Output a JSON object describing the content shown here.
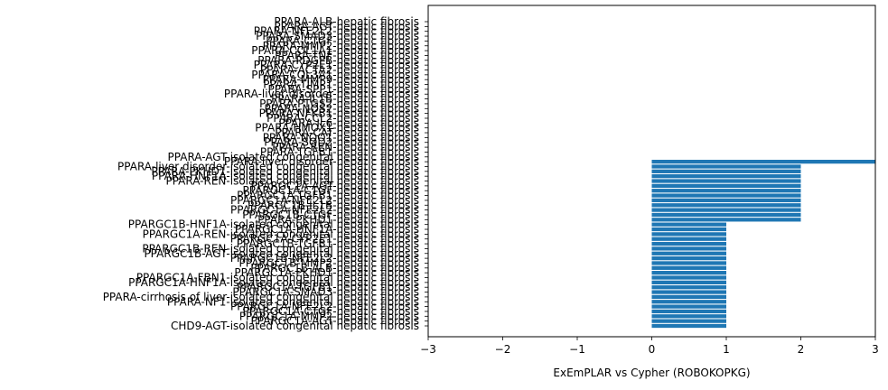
{
  "chart_data": {
    "type": "bar",
    "orientation": "horizontal",
    "xlabel": "ExEmPLAR vs Cypher (ROBOKOPKG)",
    "ylabel": "",
    "xlim": [
      -3,
      3
    ],
    "xticks": [
      "−3",
      "−2",
      "−1",
      "0",
      "1",
      "2",
      "3"
    ],
    "bar_color": "#1f77b4",
    "categories": [
      "CHD9-AGT-isolated congenital hepatic fibrosis",
      "PPARGC1A-AGT-hepatic fibrosis",
      "PPARGC1A-MMP2-hepatic fibrosis",
      "PPARGC1A-CTGF-hepatic fibrosis",
      "PPARGC1A-NFE2L2-hepatic fibrosis",
      "PPARA-NF1-isolated congenital hepatic fibrosis",
      "PPARA-cirrhosis of liver-isolated congenital hepatic fibrosis",
      "PPARGC1A-SMAD3-hepatic fibrosis",
      "PPARGC1A-TGFB1-hepatic fibrosis",
      "PPARGC1A-HNF1A-isolated congenital hepatic fibrosis",
      "PPARGC1A-FBN1-isolated congenital hepatic fibrosis",
      "PPARGC1A-PKHD1-hepatic fibrosis",
      "PPARGC1B-ALB-hepatic fibrosis",
      "PPARGC1B-MMP2-hepatic fibrosis",
      "PPARGC1B-NFE2L2-hepatic fibrosis",
      "PPARGC1B-AGT-isolated congenital hepatic fibrosis",
      "PPARGC1B-REN-isolated congenital hepatic fibrosis",
      "PPARGC1B-TGFB1-hepatic fibrosis",
      "PPARGC1A-CYP2E1-hepatic fibrosis",
      "PPARGC1A-REN-isolated congenital hepatic fibrosis",
      "PPARGC1A-HNF1A-hepatic fibrosis",
      "PPARGC1B-HNF1A-isolated congenital hepatic fibrosis",
      "PPARA-PKHD1-hepatic fibrosis",
      "PPARGC1B-CTGF-hepatic fibrosis",
      "PPARGC1A-NFE2L2-hepatic fibrosis",
      "PPARGC1B-IL1B-hepatic fibrosis",
      "PPARGC1A-NFE2L2-hepatic fibrosis",
      "PPARGC1A-TGFB1-hepatic fibrosis",
      "PPARGC1A-CTGF-hepatic fibrosis",
      "PPARGC1A-AGT-hepatic fibrosis",
      "PPARA-REN-isolated congenital hepatic fibrosis",
      "PPARA-HNF1A-isolated congenital hepatic fibrosis",
      "PPARA-PKHD1-isolated congenital hepatic fibrosis",
      "PPARA-liver disorder-isolated congenital hepatic fibrosis",
      "PPARA-liver disorder-hepatic fibrosis",
      "PPARA-AGT-isolated congenital hepatic fibrosis",
      "PPARA-TGFB1-hepatic fibrosis",
      "PPARA-REN-hepatic fibrosis",
      "PPARA-SOD2-hepatic fibrosis",
      "PPARA-NQO1-hepatic fibrosis",
      "PPARA-CAT-hepatic fibrosis",
      "PPARA-HMOX1-hepatic fibrosis",
      "PPARA-IL6-hepatic fibrosis",
      "PPARA-CCL2-hepatic fibrosis",
      "PPARA-NFKB1-hepatic fibrosis",
      "PPARA-NOS2-hepatic fibrosis",
      "PPARA-PTGS2-hepatic fibrosis",
      "PPARA-IL1B-hepatic fibrosis",
      "PPARA-liver disorder-hepatic fibrosis",
      "PPARA-SPP1-hepatic fibrosis",
      "PPARA-TIMP1-hepatic fibrosis",
      "PPARA-MMP9-hepatic fibrosis",
      "PPARA-COL3A1-hepatic fibrosis",
      "PPARA-ACTA2-hepatic fibrosis",
      "PPARA-CYP2E1-hepatic fibrosis",
      "PPARA-PDGFB-hepatic fibrosis",
      "PPARA-TNF-hepatic fibrosis",
      "PPARA-COL1A1-hepatic fibrosis",
      "PPARA-MMP2-hepatic fibrosis",
      "PPARA-CTGF-hepatic fibrosis",
      "PPARA-SMAD3-hepatic fibrosis",
      "PPARA-NFE2L2-hepatic fibrosis",
      "PPARA-AGT-hepatic fibrosis",
      "PPARA-ALB-hepatic fibrosis"
    ],
    "values": [
      1,
      1,
      1,
      1,
      1,
      1,
      1,
      1,
      1,
      1,
      1,
      1,
      1,
      1,
      1,
      1,
      1,
      1,
      1,
      1,
      1,
      1,
      2,
      2,
      2,
      2,
      2,
      2,
      2,
      2,
      2,
      2,
      2,
      2,
      3,
      0,
      0,
      0,
      0,
      0,
      0,
      0,
      0,
      0,
      0,
      0,
      0,
      0,
      0,
      0,
      0,
      0,
      0,
      0,
      0,
      0,
      0,
      0,
      0,
      0,
      0,
      0,
      0,
      0
    ]
  }
}
